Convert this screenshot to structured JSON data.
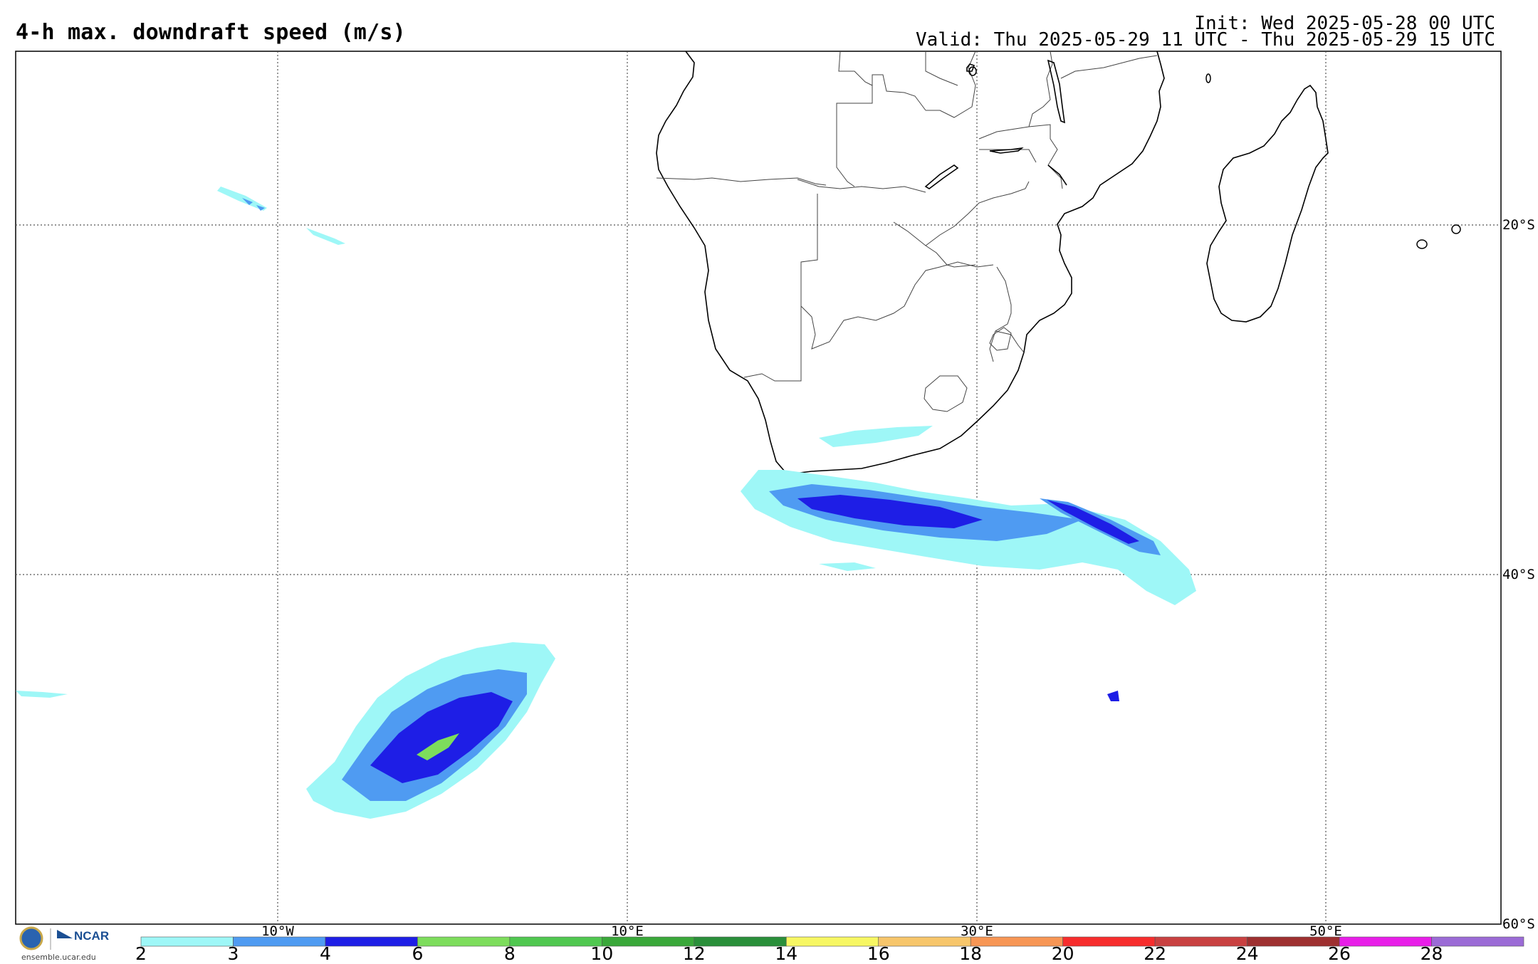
{
  "header": {
    "title": "4-h max. downdraft speed (m/s)",
    "init": "Init: Wed 2025-05-28 00 UTC",
    "valid": "Valid: Thu 2025-05-29 11 UTC - Thu 2025-05-29 15 UTC"
  },
  "map": {
    "lat_labels": [
      "20°S",
      "40°S",
      "60°S"
    ],
    "lon_labels": [
      "10°W",
      "10°E",
      "30°E",
      "50°E"
    ]
  },
  "colorbar": {
    "ticks": [
      "2",
      "3",
      "4",
      "6",
      "8",
      "10",
      "12",
      "14",
      "16",
      "18",
      "20",
      "22",
      "24",
      "26",
      "28"
    ],
    "colors": [
      "#9ef7f7",
      "#4f9bf2",
      "#1e1ee6",
      "#7ddd5c",
      "#50c850",
      "#3aa83a",
      "#2a8f3a",
      "#f7f763",
      "#f7c66b",
      "#f79655",
      "#f72d2d",
      "#c94141",
      "#9e3030",
      "#e81ee8",
      "#9b6bd6"
    ]
  },
  "footer": {
    "org": "NCAR",
    "url": "ensemble.ucar.edu"
  }
}
